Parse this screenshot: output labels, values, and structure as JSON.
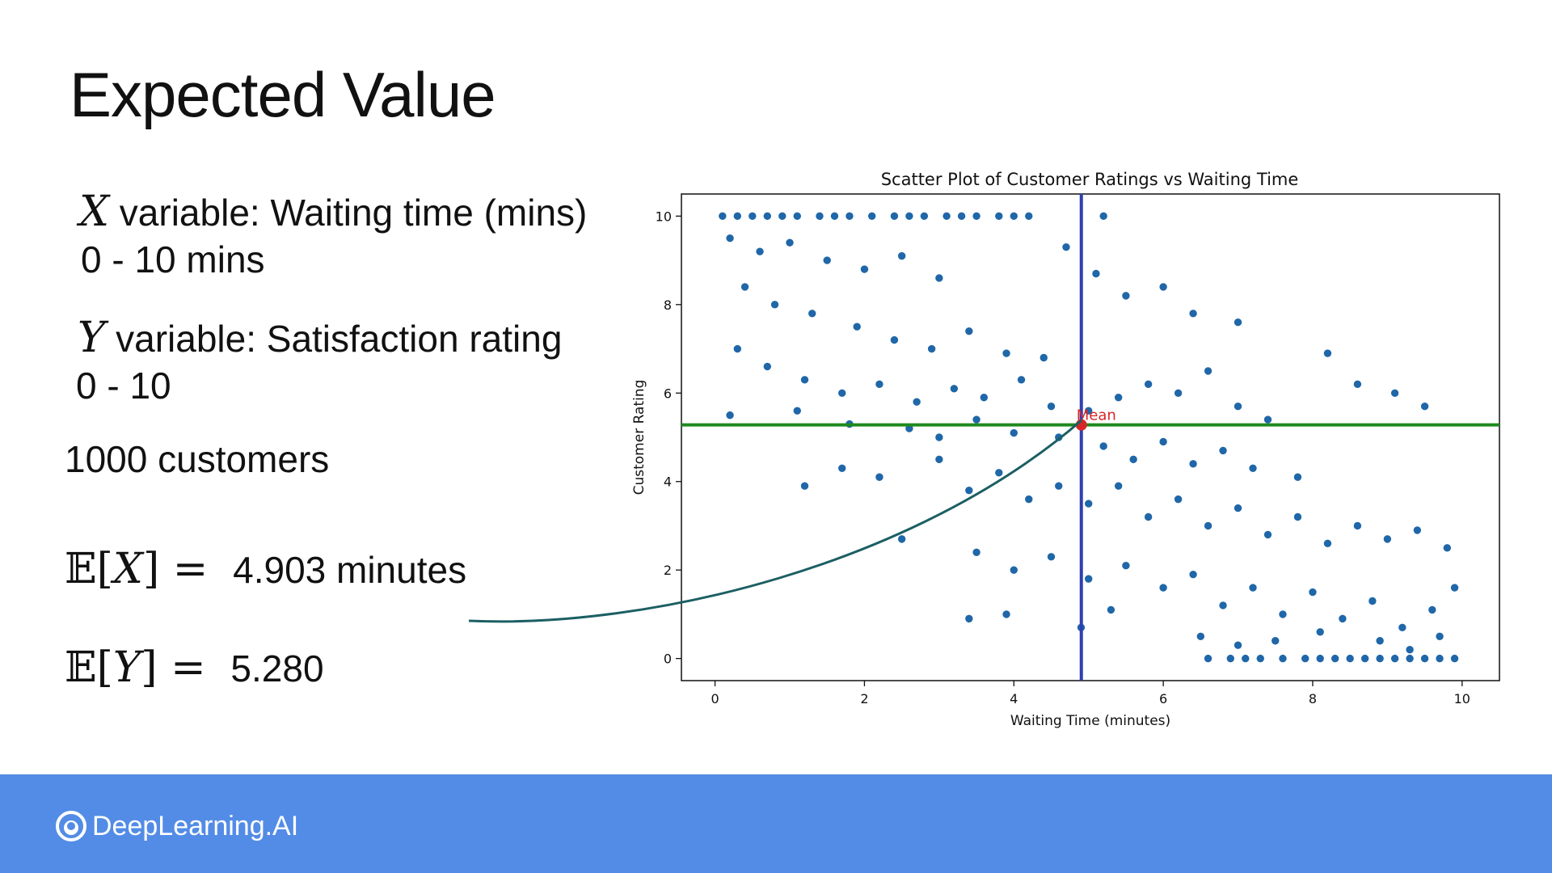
{
  "slide": {
    "title": "Expected Value",
    "x_desc": {
      "symbol": "X",
      "text": " variable: Waiting time (mins)",
      "range": "0 - 10 mins"
    },
    "y_desc": {
      "symbol": "Y",
      "text": " variable: Satisfaction rating",
      "range": "0 - 10"
    },
    "count": "1000 customers",
    "ex": {
      "prefix": "𝔼[",
      "var": "X",
      "suffix": "] =",
      "value": "4.903 minutes"
    },
    "ey": {
      "prefix": "𝔼[",
      "var": "Y",
      "suffix": "] =",
      "value": "5.280"
    },
    "arrow_color": "#1b5f63"
  },
  "chart_data": {
    "type": "scatter",
    "title": "Scatter Plot of Customer Ratings vs Waiting Time",
    "xlabel": "Waiting Time (minutes)",
    "ylabel": "Customer Rating",
    "xlim": [
      -0.45,
      10.5
    ],
    "ylim": [
      -0.5,
      10.5
    ],
    "xticks": [
      0,
      2,
      4,
      6,
      8,
      10
    ],
    "yticks": [
      0,
      2,
      4,
      6,
      8,
      10
    ],
    "grid": false,
    "point_color": "#1f67a8",
    "mean_x": 4.903,
    "mean_y": 5.28,
    "mean_label": "Mean",
    "mean_color": "#d62728",
    "vline_color": "#2e3fb0",
    "hline_color": "#1f8a1f",
    "sample_points": [
      [
        0.1,
        10
      ],
      [
        0.3,
        10
      ],
      [
        0.5,
        10
      ],
      [
        0.7,
        10
      ],
      [
        0.9,
        10
      ],
      [
        1.1,
        10
      ],
      [
        1.4,
        10
      ],
      [
        1.6,
        10
      ],
      [
        1.8,
        10
      ],
      [
        2.1,
        10
      ],
      [
        2.4,
        10
      ],
      [
        2.6,
        10
      ],
      [
        2.8,
        10
      ],
      [
        3.1,
        10
      ],
      [
        3.3,
        10
      ],
      [
        3.5,
        10
      ],
      [
        3.8,
        10
      ],
      [
        4.0,
        10
      ],
      [
        4.2,
        10
      ],
      [
        5.2,
        10
      ],
      [
        0.2,
        9.5
      ],
      [
        0.6,
        9.2
      ],
      [
        1.0,
        9.4
      ],
      [
        1.5,
        9.0
      ],
      [
        2.0,
        8.8
      ],
      [
        2.5,
        9.1
      ],
      [
        3.0,
        8.6
      ],
      [
        0.4,
        8.4
      ],
      [
        0.8,
        8.0
      ],
      [
        1.3,
        7.8
      ],
      [
        1.9,
        7.5
      ],
      [
        2.4,
        7.2
      ],
      [
        2.9,
        7.0
      ],
      [
        3.4,
        7.4
      ],
      [
        3.9,
        6.9
      ],
      [
        4.4,
        6.8
      ],
      [
        4.7,
        9.3
      ],
      [
        5.1,
        8.7
      ],
      [
        5.5,
        8.2
      ],
      [
        6.0,
        8.4
      ],
      [
        6.4,
        7.8
      ],
      [
        7.0,
        7.6
      ],
      [
        0.3,
        7.0
      ],
      [
        0.7,
        6.6
      ],
      [
        1.2,
        6.3
      ],
      [
        1.7,
        6.0
      ],
      [
        2.2,
        6.2
      ],
      [
        2.7,
        5.8
      ],
      [
        3.2,
        6.1
      ],
      [
        3.6,
        5.9
      ],
      [
        4.1,
        6.3
      ],
      [
        4.5,
        5.7
      ],
      [
        0.2,
        5.5
      ],
      [
        1.1,
        5.6
      ],
      [
        1.8,
        5.3
      ],
      [
        2.6,
        5.2
      ],
      [
        3.0,
        5.0
      ],
      [
        3.5,
        5.4
      ],
      [
        4.0,
        5.1
      ],
      [
        4.6,
        5.0
      ],
      [
        5.0,
        5.6
      ],
      [
        5.4,
        5.9
      ],
      [
        5.8,
        6.2
      ],
      [
        6.2,
        6.0
      ],
      [
        6.6,
        6.5
      ],
      [
        7.0,
        5.7
      ],
      [
        7.4,
        5.4
      ],
      [
        5.2,
        4.8
      ],
      [
        5.6,
        4.5
      ],
      [
        6.0,
        4.9
      ],
      [
        6.4,
        4.4
      ],
      [
        6.8,
        4.7
      ],
      [
        7.2,
        4.3
      ],
      [
        7.8,
        4.1
      ],
      [
        8.2,
        6.9
      ],
      [
        8.6,
        6.2
      ],
      [
        9.1,
        6.0
      ],
      [
        9.5,
        5.7
      ],
      [
        1.2,
        3.9
      ],
      [
        1.7,
        4.3
      ],
      [
        2.2,
        4.1
      ],
      [
        3.0,
        4.5
      ],
      [
        3.4,
        3.8
      ],
      [
        3.8,
        4.2
      ],
      [
        4.2,
        3.6
      ],
      [
        4.6,
        3.9
      ],
      [
        5.0,
        3.5
      ],
      [
        5.4,
        3.9
      ],
      [
        5.8,
        3.2
      ],
      [
        6.2,
        3.6
      ],
      [
        6.6,
        3.0
      ],
      [
        7.0,
        3.4
      ],
      [
        7.4,
        2.8
      ],
      [
        7.8,
        3.2
      ],
      [
        8.2,
        2.6
      ],
      [
        8.6,
        3.0
      ],
      [
        9.0,
        2.7
      ],
      [
        9.4,
        2.9
      ],
      [
        9.8,
        2.5
      ],
      [
        2.5,
        2.7
      ],
      [
        3.5,
        2.4
      ],
      [
        4.0,
        2.0
      ],
      [
        4.5,
        2.3
      ],
      [
        5.0,
        1.8
      ],
      [
        5.5,
        2.1
      ],
      [
        6.0,
        1.6
      ],
      [
        6.4,
        1.9
      ],
      [
        6.8,
        1.2
      ],
      [
        7.2,
        1.6
      ],
      [
        7.6,
        1.0
      ],
      [
        8.0,
        1.5
      ],
      [
        8.4,
        0.9
      ],
      [
        8.8,
        1.3
      ],
      [
        9.2,
        0.7
      ],
      [
        9.6,
        1.1
      ],
      [
        9.9,
        1.6
      ],
      [
        3.4,
        0.9
      ],
      [
        3.9,
        1.0
      ],
      [
        4.9,
        0.7
      ],
      [
        5.3,
        1.1
      ],
      [
        6.5,
        0.5
      ],
      [
        7.0,
        0.3
      ],
      [
        7.5,
        0.4
      ],
      [
        8.1,
        0.6
      ],
      [
        8.9,
        0.4
      ],
      [
        9.3,
        0.2
      ],
      [
        9.7,
        0.5
      ],
      [
        6.6,
        0
      ],
      [
        6.9,
        0
      ],
      [
        7.1,
        0
      ],
      [
        7.3,
        0
      ],
      [
        7.6,
        0
      ],
      [
        7.9,
        0
      ],
      [
        8.1,
        0
      ],
      [
        8.3,
        0
      ],
      [
        8.5,
        0
      ],
      [
        8.7,
        0
      ],
      [
        8.9,
        0
      ],
      [
        9.1,
        0
      ],
      [
        9.3,
        0
      ],
      [
        9.5,
        0
      ],
      [
        9.7,
        0
      ],
      [
        9.9,
        0
      ]
    ]
  },
  "footer": {
    "brand": "DeepLearning.AI",
    "color": "#538ce6"
  }
}
